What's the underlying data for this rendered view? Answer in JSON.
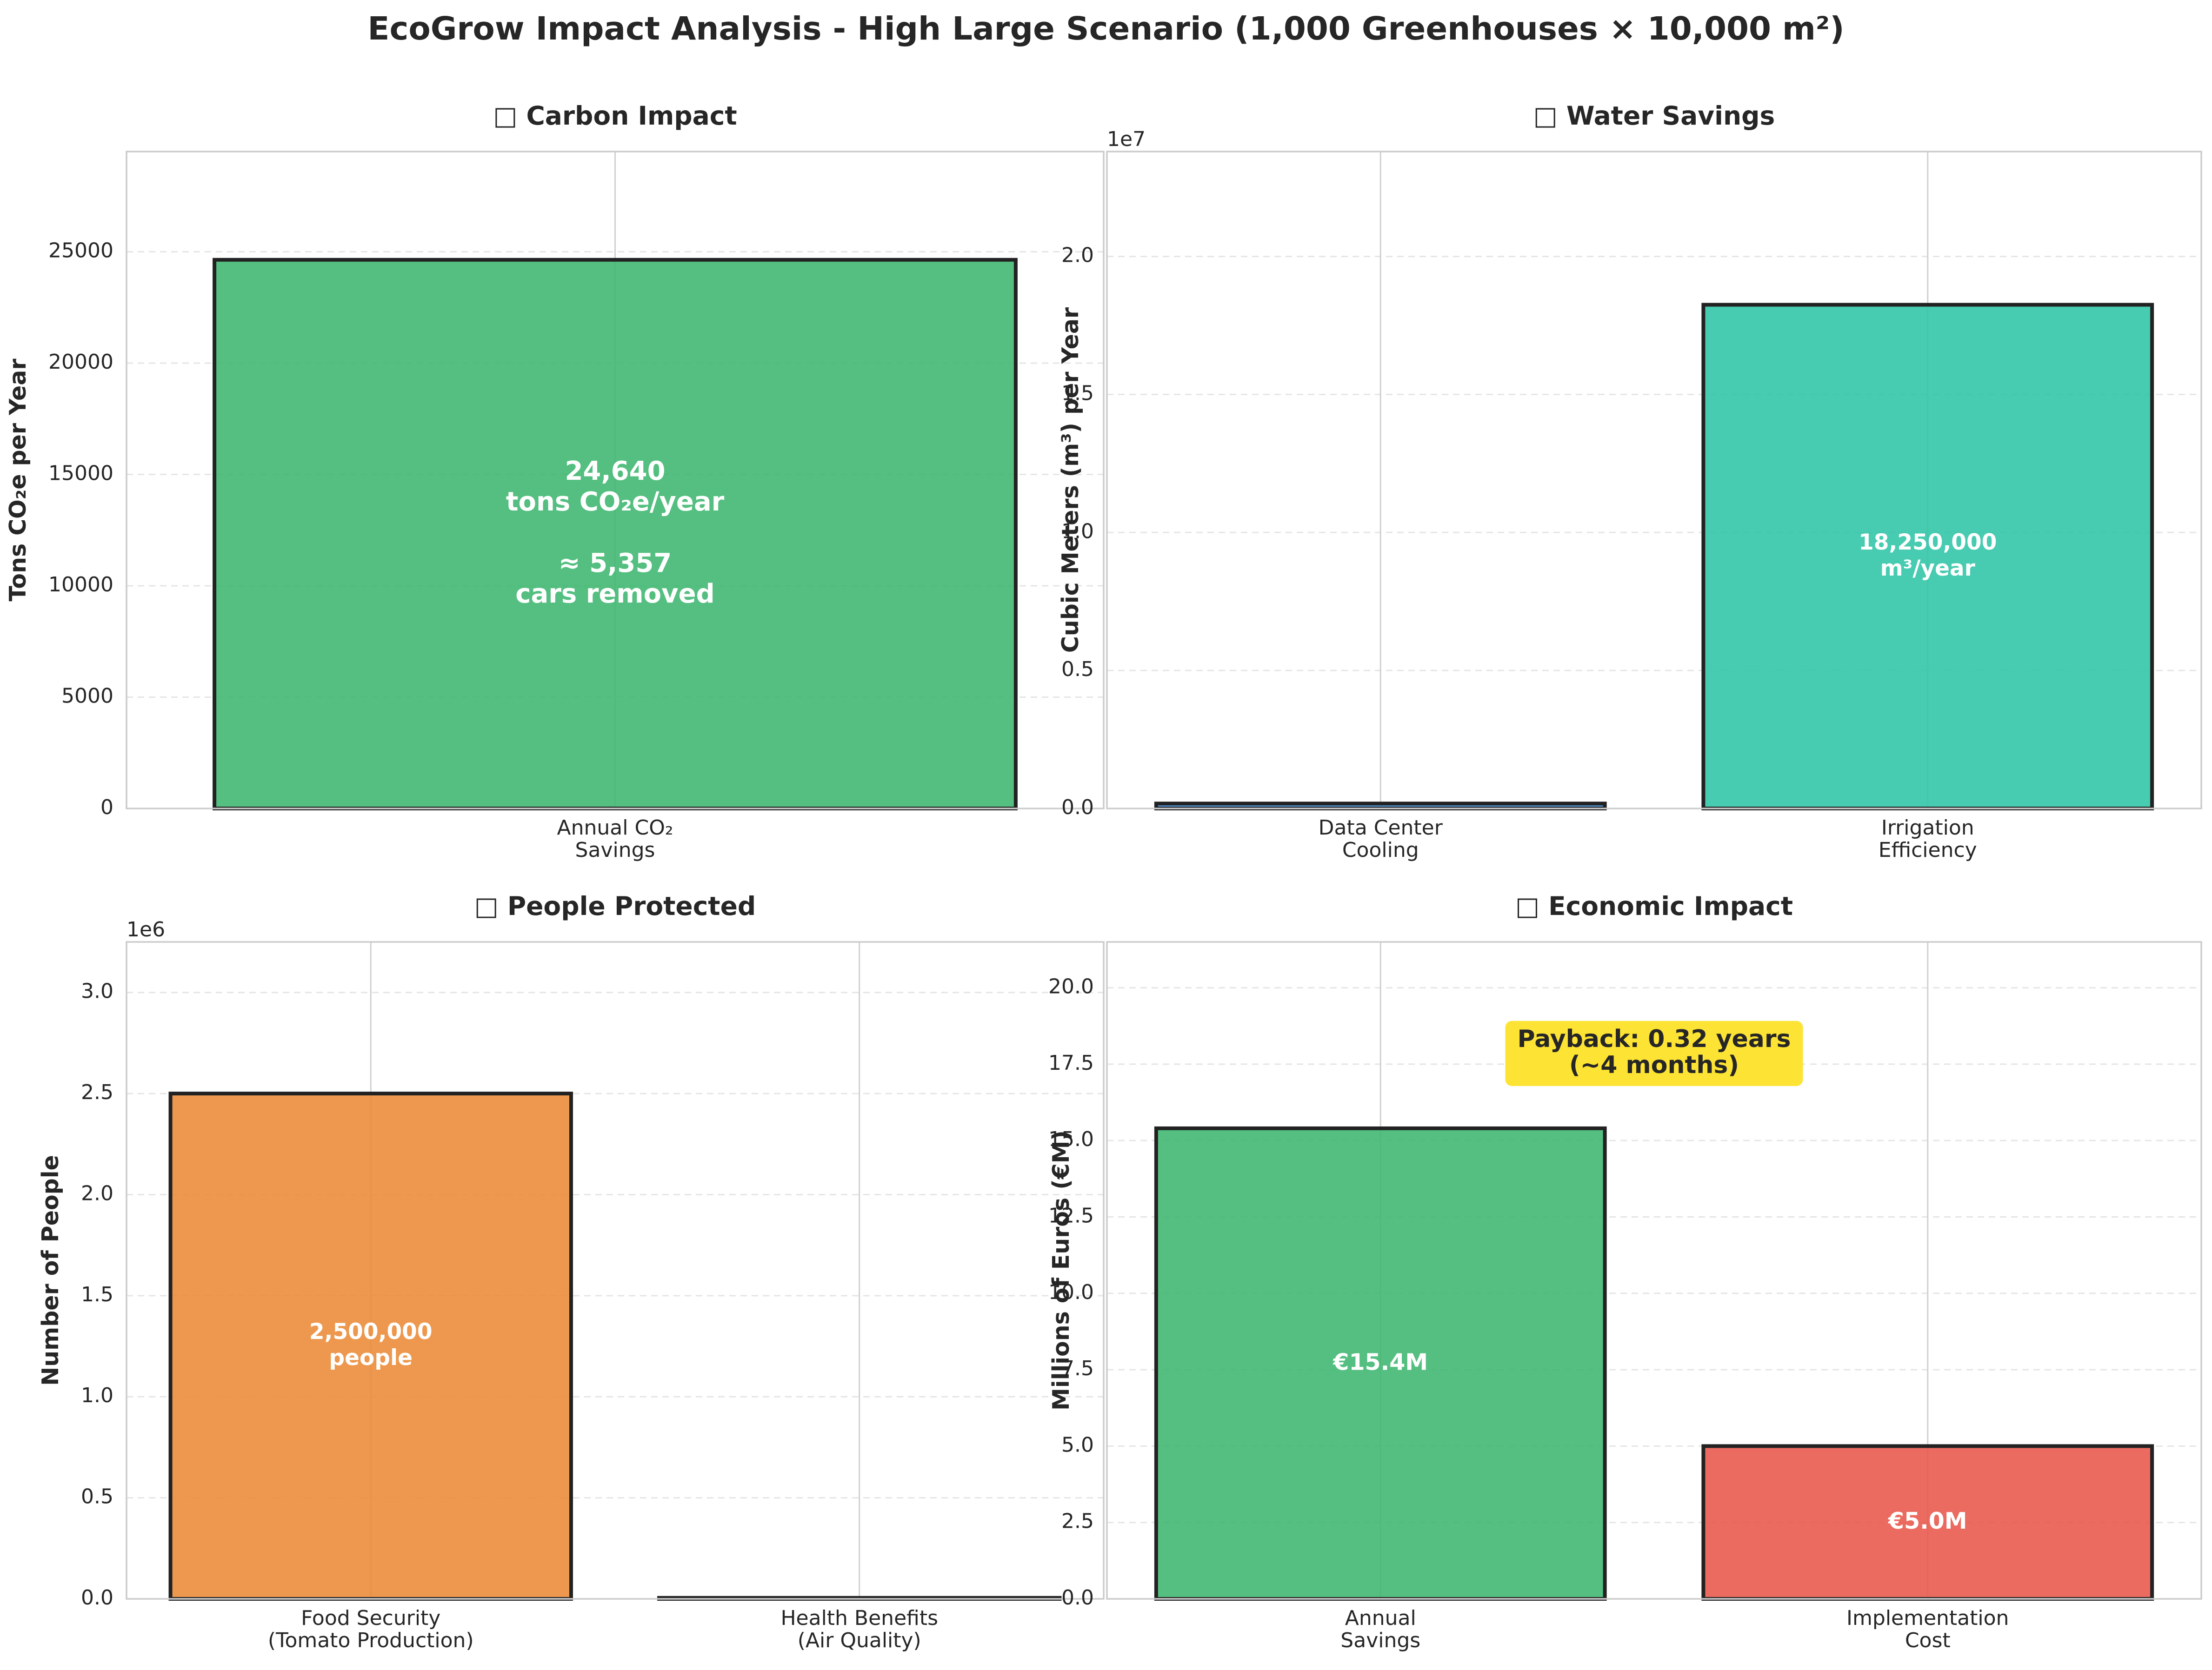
{
  "figure_title": "EcoGrow Impact Analysis - High Large Scenario (1,000 Greenhouses × 10,000 m²)",
  "chart_data": [
    {
      "id": "carbon",
      "type": "bar",
      "title": "□ Carbon Impact",
      "ylabel": "Tons CO₂e per Year",
      "offset_text": "",
      "ylim": [
        0,
        29500
      ],
      "yticks": [
        0,
        5000,
        10000,
        15000,
        20000,
        25000
      ],
      "ytick_labels": [
        "0",
        "5000",
        "10000",
        "15000",
        "20000",
        "25000"
      ],
      "categories": [
        "Annual CO₂\nSavings"
      ],
      "values": [
        24640
      ],
      "colors": [
        "#3cb66e"
      ],
      "bar_labels": [
        "24,640\ntons CO₂e/year\n\n≈ 5,357\ncars removed"
      ]
    },
    {
      "id": "water",
      "type": "bar",
      "title": "□ Water Savings",
      "ylabel": "Cubic Meters (m³) per Year",
      "offset_text": "1e7",
      "ylim": [
        0,
        23800000
      ],
      "yticks": [
        0,
        5000000,
        10000000,
        15000000,
        20000000
      ],
      "ytick_labels": [
        "0.0",
        "0.5",
        "1.0",
        "1.5",
        "2.0"
      ],
      "categories": [
        "Data Center\nCooling",
        "Irrigation\nEfficiency"
      ],
      "values": [
        180000,
        18250000
      ],
      "colors": [
        "#3a87d6",
        "#2ec4a6"
      ],
      "bar_labels": [
        "",
        "18,250,000\nm³/year"
      ]
    },
    {
      "id": "people",
      "type": "bar",
      "title": "□ People Protected",
      "ylabel": "Number of People",
      "offset_text": "1e6",
      "ylim": [
        0,
        3250000
      ],
      "yticks": [
        0,
        500000,
        1000000,
        1500000,
        2000000,
        2500000,
        3000000
      ],
      "ytick_labels": [
        "0.0",
        "0.5",
        "1.0",
        "1.5",
        "2.0",
        "2.5",
        "3.0"
      ],
      "categories": [
        "Food Security\n(Tomato Production)",
        "Health Benefits\n(Air Quality)"
      ],
      "values": [
        2500000,
        5000
      ],
      "colors": [
        "#ea8a35",
        "#9b59b6"
      ],
      "bar_labels": [
        "2,500,000\npeople",
        ""
      ]
    },
    {
      "id": "economic",
      "type": "bar",
      "title": "□ Economic Impact",
      "ylabel": "Millions of Euros (€M)",
      "offset_text": "",
      "ylim": [
        0,
        21.5
      ],
      "yticks": [
        0,
        2.5,
        5,
        7.5,
        10,
        12.5,
        15,
        17.5,
        20
      ],
      "ytick_labels": [
        "0.0",
        "2.5",
        "5.0",
        "7.5",
        "10.0",
        "12.5",
        "15.0",
        "17.5",
        "20.0"
      ],
      "categories": [
        "Annual\nSavings",
        "Implementation\nCost"
      ],
      "values": [
        15.4,
        5.0
      ],
      "colors": [
        "#3cb66e",
        "#e8574a"
      ],
      "bar_labels": [
        "€15.4M",
        "€5.0M"
      ],
      "annotation": "Payback: 0.32 years\n(~4 months)"
    }
  ]
}
